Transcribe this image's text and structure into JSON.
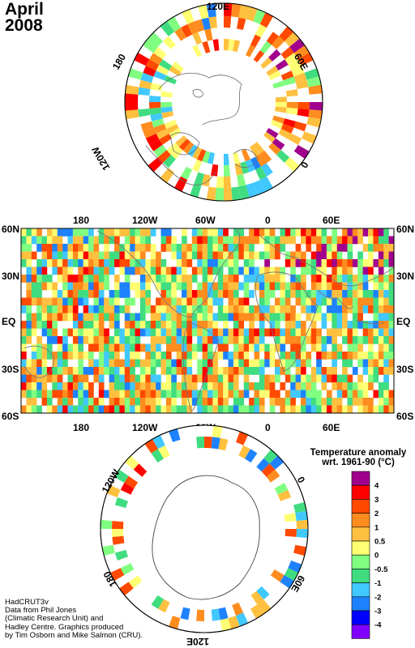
{
  "title": {
    "month": "April",
    "year": "2008"
  },
  "north_polar_labels": {
    "top": "120E",
    "upper_left": "180",
    "upper_right": "60E",
    "lower_left": "120W",
    "lower_right": "0"
  },
  "world_map": {
    "lon_labels": [
      "180",
      "120W",
      "60W",
      "0",
      "60E"
    ],
    "lat_labels_left": [
      "60N",
      "30N",
      "EQ",
      "30S",
      "60S"
    ],
    "lat_labels_right": [
      "60N",
      "30N",
      "EQ",
      "30S",
      "60S"
    ]
  },
  "south_polar_labels": {
    "upper_left": "120W",
    "upper_right": "0",
    "lower_left": "180",
    "lower_right": "60E",
    "bottom": "120E"
  },
  "legend": {
    "title_line1": "Temperature anomaly",
    "title_line2": "wrt. 1961-90  (°C)",
    "bins": [
      {
        "color": "#a0008c"
      },
      {
        "color": "#ff0000"
      },
      {
        "color": "#ff4a00"
      },
      {
        "color": "#ff8c1e"
      },
      {
        "color": "#ffc040"
      },
      {
        "color": "#ffff73"
      },
      {
        "color": "#80ff80"
      },
      {
        "color": "#40dc80"
      },
      {
        "color": "#40c8ff"
      },
      {
        "color": "#1e82ff"
      },
      {
        "color": "#0000ff"
      },
      {
        "color": "#8000ff"
      }
    ],
    "tick_labels": [
      "4",
      "3",
      "2",
      "1",
      "0.5",
      "0",
      "-0.5",
      "-1",
      "-2",
      "-3",
      "-4"
    ]
  },
  "credits": [
    "HadCRUT3v",
    "Data from Phil Jones",
    "(Climatic Research Unit) and",
    "Hadley Centre.  Graphics produced",
    "by Tim Osborn and Mike Salmon (CRU)."
  ]
}
